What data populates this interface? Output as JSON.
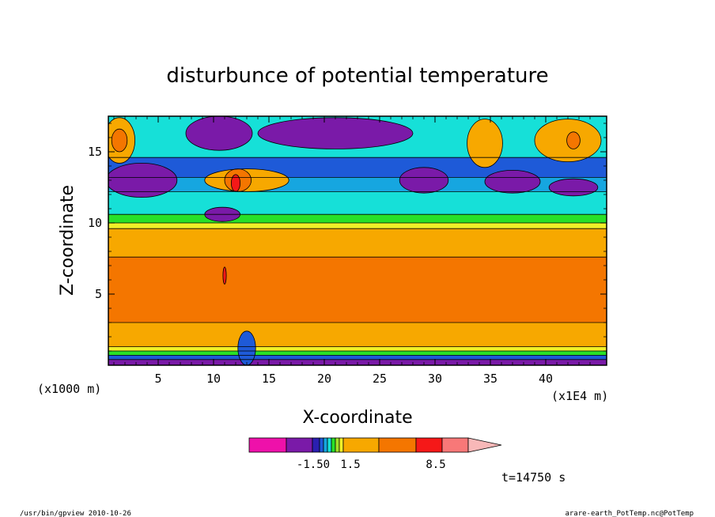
{
  "footer": {
    "left": "/usr/bin/gpview   2010-10-26",
    "right": "arare-earth_PotTemp.nc@PotTemp"
  },
  "chart_data": {
    "type": "heatmap",
    "title": "disturbunce of potential temperature",
    "xlabel": "X-coordinate",
    "ylabel": "Z-coordinate",
    "x_units_left": "(x1000 m)",
    "x_units_right": "(x1E4 m)",
    "x_ticks": [
      "5",
      "10",
      "15",
      "20",
      "25",
      "30",
      "35",
      "40"
    ],
    "x_tick_values": [
      5,
      10,
      15,
      20,
      25,
      30,
      35,
      40
    ],
    "y_ticks": [
      "5",
      "10",
      "15"
    ],
    "y_tick_values": [
      5,
      10,
      15
    ],
    "xlim": [
      0.5,
      45.5
    ],
    "ylim": [
      0,
      17.5
    ],
    "time_label": "t=14750 s",
    "colorbar": {
      "colors": [
        "#ee11aa",
        "#7a1aa8",
        "#2a1fb0",
        "#1e5ad8",
        "#16a6e0",
        "#16e0d8",
        "#28e028",
        "#a0e028",
        "#f0f028",
        "#f7a800",
        "#f47600",
        "#f51818",
        "#f87878",
        "#f8b8b8"
      ],
      "tick_labels": [
        "-1.50",
        "1.5",
        "8.5"
      ]
    },
    "layers": [
      {
        "z0": 0.0,
        "z1": 0.4,
        "color": "#7a1aa8"
      },
      {
        "z0": 0.4,
        "z1": 0.7,
        "color": "#1e5ad8"
      },
      {
        "z0": 0.7,
        "z1": 1.0,
        "color": "#28e028"
      },
      {
        "z0": 1.0,
        "z1": 1.3,
        "color": "#f0f028"
      },
      {
        "z0": 1.3,
        "z1": 3.0,
        "color": "#f7a800"
      },
      {
        "z0": 3.0,
        "z1": 7.6,
        "color": "#f47600"
      },
      {
        "z0": 7.6,
        "z1": 9.6,
        "color": "#f7a800"
      },
      {
        "z0": 9.6,
        "z1": 10.0,
        "color": "#f0f028"
      },
      {
        "z0": 10.0,
        "z1": 10.6,
        "color": "#28e028"
      },
      {
        "z0": 10.6,
        "z1": 12.2,
        "color": "#16e0d8"
      },
      {
        "z0": 12.2,
        "z1": 13.2,
        "color": "#16a6e0"
      },
      {
        "z0": 13.2,
        "z1": 14.6,
        "color": "#1e5ad8"
      },
      {
        "z0": 14.6,
        "z1": 17.5,
        "color": "#16e0d8"
      }
    ],
    "blobs": [
      {
        "x": 3.5,
        "z": 13.0,
        "rx": 3.2,
        "rz": 1.2,
        "color": "#7a1aa8"
      },
      {
        "x": 10.5,
        "z": 16.3,
        "rx": 3.0,
        "rz": 1.2,
        "color": "#7a1aa8"
      },
      {
        "x": 21.0,
        "z": 16.3,
        "rx": 7.0,
        "rz": 1.1,
        "color": "#7a1aa8"
      },
      {
        "x": 29.0,
        "z": 13.0,
        "rx": 2.2,
        "rz": 0.9,
        "color": "#7a1aa8"
      },
      {
        "x": 37.0,
        "z": 12.9,
        "rx": 2.5,
        "rz": 0.8,
        "color": "#7a1aa8"
      },
      {
        "x": 42.5,
        "z": 12.5,
        "rx": 2.2,
        "rz": 0.6,
        "color": "#7a1aa8"
      },
      {
        "x": 1.5,
        "z": 15.8,
        "rx": 1.4,
        "rz": 1.6,
        "color": "#f7a800"
      },
      {
        "x": 1.5,
        "z": 15.8,
        "rx": 0.7,
        "rz": 0.8,
        "color": "#f47600"
      },
      {
        "x": 34.5,
        "z": 15.6,
        "rx": 1.6,
        "rz": 1.7,
        "color": "#f7a800"
      },
      {
        "x": 42.0,
        "z": 15.8,
        "rx": 3.0,
        "rz": 1.5,
        "color": "#f7a800"
      },
      {
        "x": 42.5,
        "z": 15.8,
        "rx": 0.6,
        "rz": 0.6,
        "color": "#f47600"
      },
      {
        "x": 13.0,
        "z": 13.0,
        "rx": 3.8,
        "rz": 0.8,
        "color": "#f7a800"
      },
      {
        "x": 12.2,
        "z": 13.0,
        "rx": 1.2,
        "rz": 0.8,
        "color": "#f47600"
      },
      {
        "x": 12.0,
        "z": 12.8,
        "rx": 0.4,
        "rz": 0.6,
        "color": "#f51818"
      },
      {
        "x": 10.8,
        "z": 10.6,
        "rx": 1.6,
        "rz": 0.5,
        "color": "#7a1aa8"
      },
      {
        "x": 11.0,
        "z": 6.3,
        "rx": 0.15,
        "rz": 0.6,
        "color": "#f51818"
      },
      {
        "x": 13.0,
        "z": 1.2,
        "rx": 0.8,
        "rz": 1.2,
        "color": "#1e5ad8"
      }
    ]
  }
}
